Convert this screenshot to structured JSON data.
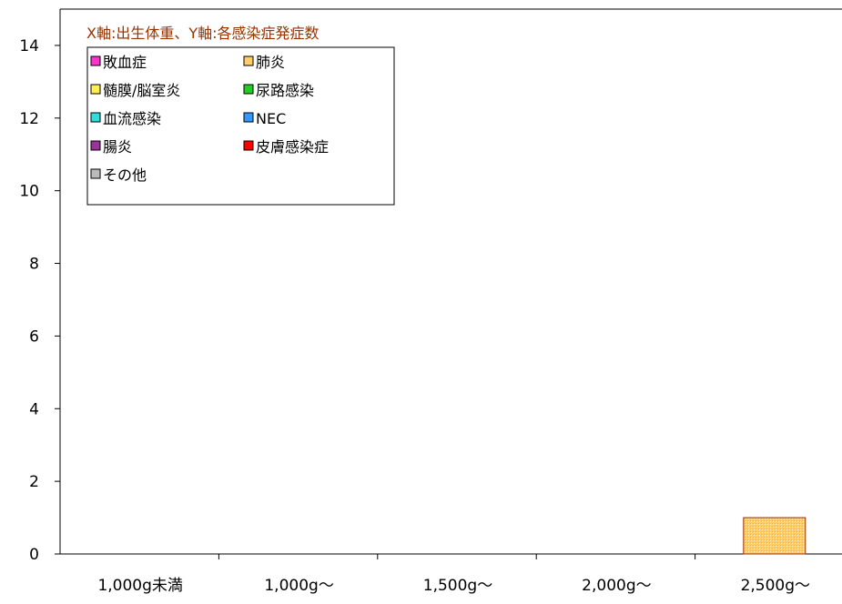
{
  "chart_data": {
    "type": "bar",
    "title": "",
    "xlabel": "",
    "ylabel": "",
    "ylim": [
      0,
      15
    ],
    "yticks": [
      0,
      2,
      4,
      6,
      8,
      10,
      12,
      14
    ],
    "categories": [
      "1,000g未満",
      "1,000g〜",
      "1,500g〜",
      "2,000g〜",
      "2,500g〜"
    ],
    "legend_title": "X軸:出生体重、Y軸:各感染症発症数",
    "legend_placement": "top-left",
    "grid": false,
    "series": [
      {
        "name": "敗血症",
        "color": "#ff33cc",
        "values": [
          0,
          0,
          0,
          0,
          0
        ]
      },
      {
        "name": "肺炎",
        "color": "#ffcc66",
        "values": [
          0,
          0,
          0,
          0,
          1
        ]
      },
      {
        "name": "髄膜/脳室炎",
        "color": "#ffee55",
        "values": [
          0,
          0,
          0,
          0,
          0
        ]
      },
      {
        "name": "尿路感染",
        "color": "#22cc22",
        "values": [
          0,
          0,
          0,
          0,
          0
        ]
      },
      {
        "name": "血流感染",
        "color": "#33dddd",
        "values": [
          0,
          0,
          0,
          0,
          0
        ]
      },
      {
        "name": "NEC",
        "color": "#3399ff",
        "values": [
          0,
          0,
          0,
          0,
          0
        ]
      },
      {
        "name": "腸炎",
        "color": "#993399",
        "values": [
          0,
          0,
          0,
          0,
          0
        ]
      },
      {
        "name": "皮膚感染症",
        "color": "#ff0000",
        "values": [
          0,
          0,
          0,
          0,
          0
        ]
      },
      {
        "name": "その他",
        "color": "#bbbbbb",
        "values": [
          0,
          0,
          0,
          0,
          0
        ]
      }
    ]
  }
}
